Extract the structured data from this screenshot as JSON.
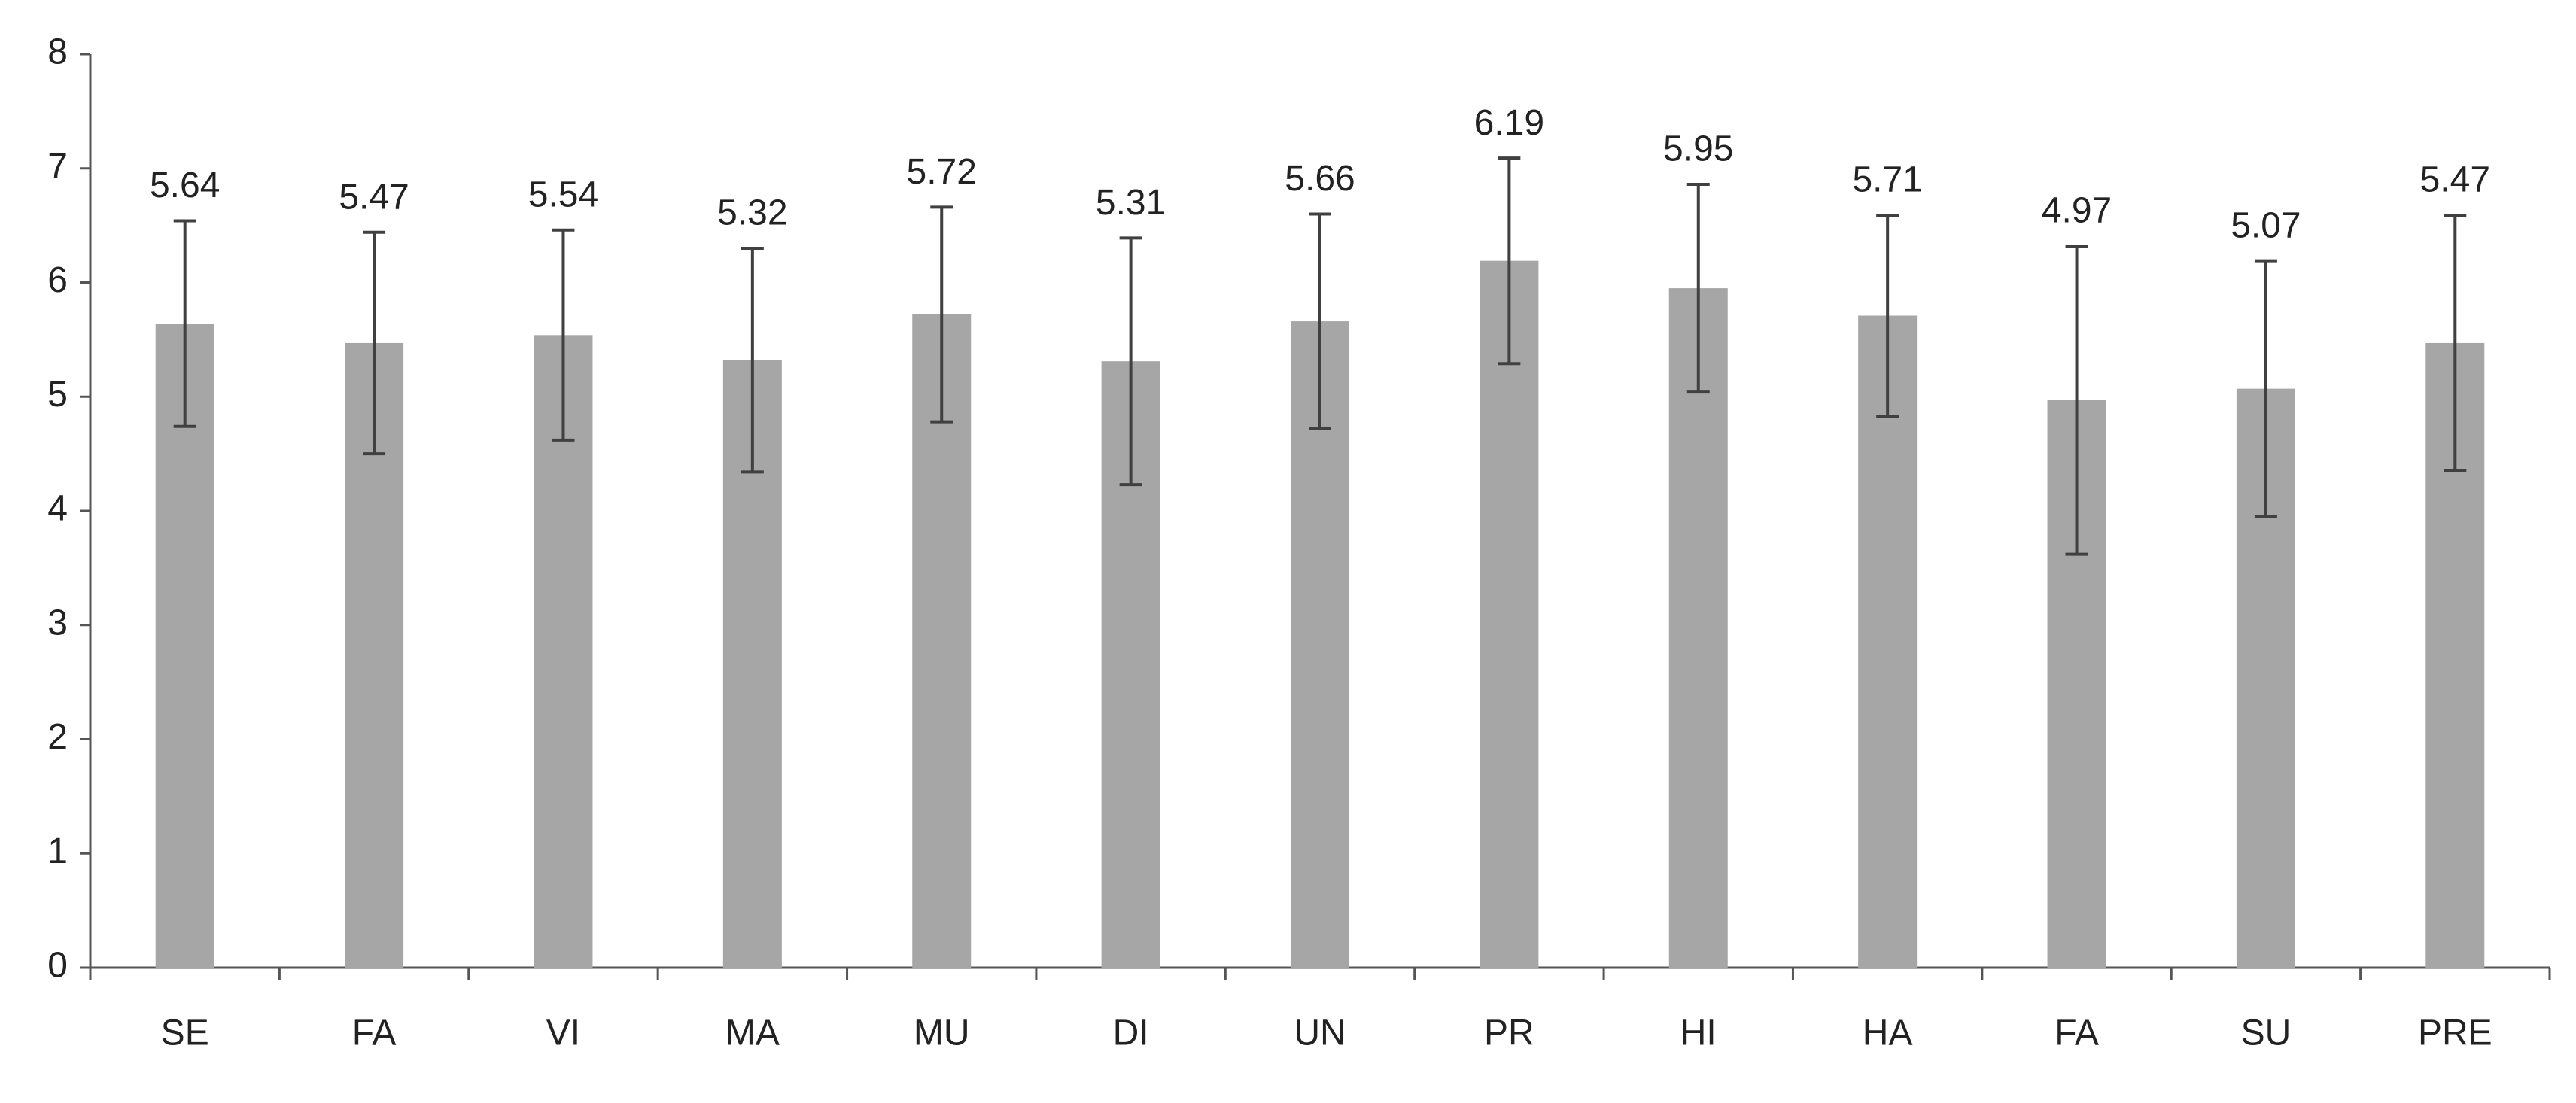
{
  "chart_data": {
    "type": "bar",
    "categories": [
      "SE",
      "FA",
      "VI",
      "MA",
      "MU",
      "DI",
      "UN",
      "PR",
      "HI",
      "HA",
      "FA",
      "SU",
      "PRE"
    ],
    "values": [
      5.64,
      5.47,
      5.54,
      5.32,
      5.72,
      5.31,
      5.66,
      6.19,
      5.95,
      5.71,
      4.97,
      5.07,
      5.47
    ],
    "errors": [
      0.9,
      0.97,
      0.92,
      0.98,
      0.94,
      1.08,
      0.94,
      0.9,
      0.91,
      0.88,
      1.35,
      1.12,
      1.12
    ],
    "color": "#a6a6a6",
    "error_color": "#404040",
    "ylim": [
      0,
      8
    ],
    "yticks": [
      0,
      1,
      2,
      3,
      4,
      5,
      6,
      7,
      8
    ],
    "grid": false
  }
}
